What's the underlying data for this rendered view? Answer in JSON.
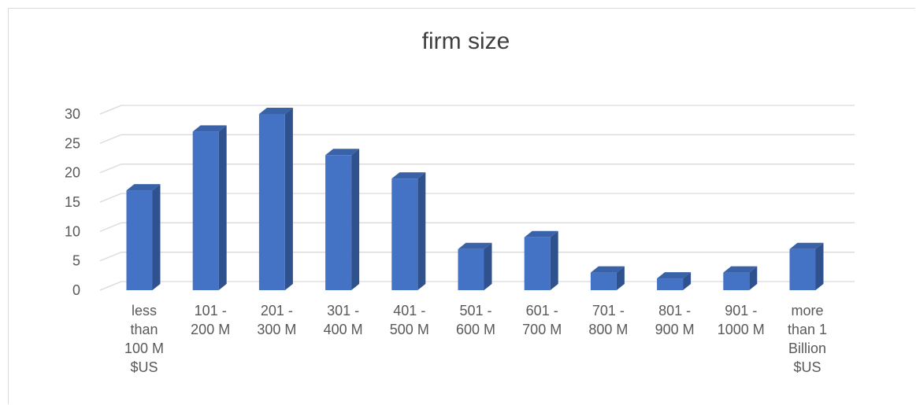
{
  "chart_data": {
    "type": "bar",
    "style": "3d-column",
    "title": "firm size",
    "categories": [
      "less\nthan\n100 M\n$US",
      "101 -\n200 M",
      "201 -\n300 M",
      "301 -\n400 M",
      "401 -\n500 M",
      "501 -\n600 M",
      "601 -\n700 M",
      "701 -\n800 M",
      "801 -\n900 M",
      "901 -\n1000 M",
      "more\nthan 1\nBillion\n$US"
    ],
    "values": [
      17,
      27,
      30,
      23,
      19,
      7,
      9,
      3,
      2,
      3,
      7
    ],
    "ylim": [
      0,
      30
    ],
    "yticks": [
      "0",
      "5",
      "10",
      "15",
      "20",
      "25",
      "30"
    ],
    "grid": true,
    "legend": "none",
    "bar_color": "#4472c4"
  }
}
